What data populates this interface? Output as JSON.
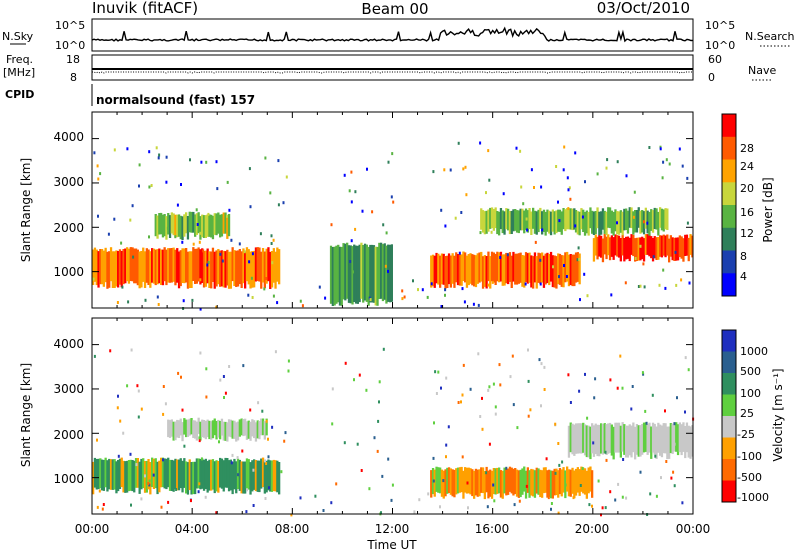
{
  "header": {
    "station": "Inuvik (fitACF)",
    "beam": "Beam 00",
    "date": "03/Oct/2010"
  },
  "noise_panel": {
    "left_label": "N.Sky",
    "right_label": "N.Search",
    "left_ticks": [
      "10^5",
      "10^0"
    ],
    "right_ticks": [
      "10^5",
      "10^0"
    ]
  },
  "freq_panel": {
    "left_label_top": "Freq.",
    "left_label_bottom": "[MHz]",
    "right_label": "Nave",
    "left_ticks": [
      "18",
      "8"
    ],
    "right_ticks": [
      "60",
      "0"
    ]
  },
  "cpid": {
    "label": "CPID",
    "value": "normalsound (fast) 157"
  },
  "power_panel": {
    "ylabel": "Slant Range [km]",
    "yticks": [
      "4000",
      "3000",
      "2000",
      "1000"
    ],
    "colorbar_label": "Power [dB]",
    "colorbar_ticks": [
      "28",
      "24",
      "20",
      "16",
      "12",
      "8",
      "4"
    ],
    "colors": [
      "#0000ff",
      "#1a3faf",
      "#2f7f5a",
      "#59b342",
      "#c8d63c",
      "#ffa300",
      "#ff5a00",
      "#ff0000"
    ]
  },
  "velocity_panel": {
    "ylabel": "Slant Range [km]",
    "yticks": [
      "4000",
      "3000",
      "2000",
      "1000"
    ],
    "colorbar_label": "Velocity [m s⁻¹]",
    "colorbar_ticks": [
      "1000",
      "500",
      "100",
      "25",
      "-25",
      "-100",
      "-500",
      "-1000"
    ],
    "colors": [
      "#1f2fbf",
      "#2a5f8f",
      "#2f8f5f",
      "#5fcf3f",
      "#c8c8c8",
      "#ffa000",
      "#ff6a00",
      "#ff0000"
    ]
  },
  "x_axis": {
    "ticks": [
      "00:00",
      "04:00",
      "08:00",
      "12:00",
      "16:00",
      "20:00",
      "00:00"
    ],
    "label": "Time UT"
  },
  "chart_data": {
    "type": "heatmap",
    "title": "Inuvik (fitACF)",
    "subtitle": "Beam 00 03/Oct/2010",
    "xlabel": "Time UT",
    "ylabel": "Slant Range [km]",
    "x_range_hours": [
      0,
      24
    ],
    "y_range_km": [
      180,
      4600
    ],
    "power_scale_db": [
      0,
      30
    ],
    "velocity_scale": [
      -1000,
      1000
    ],
    "power_bands": [
      {
        "t": [
          0,
          7.5
        ],
        "range": [
          700,
          1500
        ],
        "level_db": 24
      },
      {
        "t": [
          2.5,
          5.5
        ],
        "range": [
          1800,
          2300
        ],
        "level_db": 15
      },
      {
        "t": [
          9.5,
          12
        ],
        "range": [
          300,
          1600
        ],
        "level_db": 12
      },
      {
        "t": [
          13.5,
          19.5
        ],
        "range": [
          700,
          1400
        ],
        "level_db": 24
      },
      {
        "t": [
          20,
          24
        ],
        "range": [
          1300,
          1800
        ],
        "level_db": 26
      },
      {
        "t": [
          15.5,
          23
        ],
        "range": [
          1900,
          2400
        ],
        "level_db": 14
      }
    ],
    "velocity_bands": [
      {
        "t": [
          0,
          7.5
        ],
        "range": [
          700,
          1400
        ],
        "velocity": 100
      },
      {
        "t": [
          3,
          7
        ],
        "range": [
          1900,
          2300
        ],
        "velocity": 0
      },
      {
        "t": [
          13.5,
          20
        ],
        "range": [
          600,
          1200
        ],
        "velocity": -100
      },
      {
        "t": [
          19,
          24
        ],
        "range": [
          1500,
          2200
        ],
        "velocity": 0
      }
    ]
  }
}
